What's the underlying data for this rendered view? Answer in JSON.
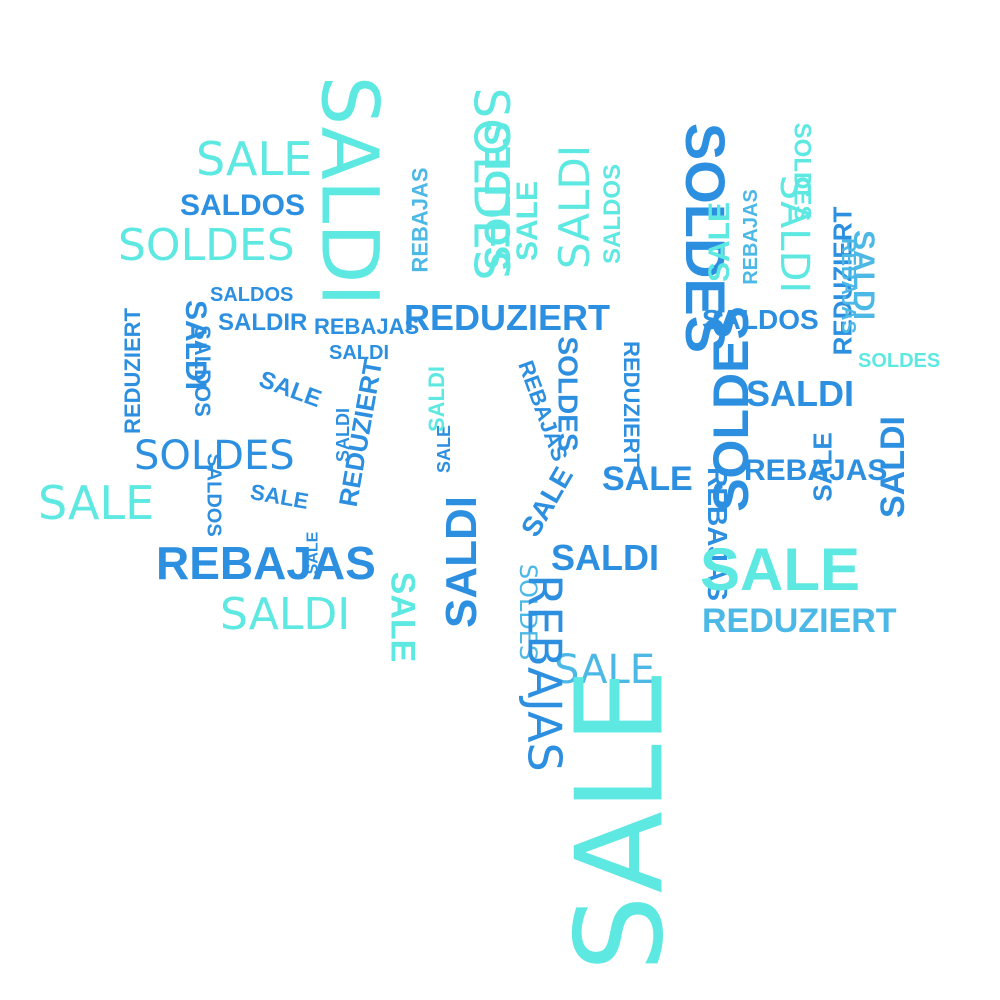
{
  "colors": {
    "background": "#ffffff",
    "light_cyan": "#5ee8e2",
    "mid_blue": "#4cb8e6",
    "blue": "#2d8fe0"
  },
  "words": [
    "SALE",
    "SALDOS",
    "SOLDES",
    "SALDI",
    "SOLDES",
    "REBAJAS",
    "SOLDES",
    "SALE",
    "SALDI",
    "SALDOS",
    "SOLDES",
    "SALE",
    "REBAJAS",
    "SALDI",
    "REDUZIERT",
    "SALDOS",
    "SALDIR",
    "REBAJAS",
    "REDUZIERT",
    "SALDOS",
    "REBAJAS",
    "SOLDES",
    "SALDI",
    "SALE",
    "REDUZIERT",
    "REDUZIERT",
    "REBAJAS",
    "SALDI",
    "SOLDES",
    "SALE",
    "REDUZIERT",
    "SALDI",
    "SOLDES",
    "SALDI",
    "SOLDES",
    "SALE",
    "REBAJAS",
    "SALE",
    "SALDI",
    "SALDOS",
    "SALE",
    "SALE",
    "REBAJAS",
    "SALE",
    "SALDI",
    "SALDI",
    "REBAJAS",
    "SALDI",
    "SALE",
    "REDUZIERT",
    "SALE",
    "SOLDES",
    "SALE",
    "SALE",
    "REBAJAS",
    "SALDI",
    "SALDI",
    "SALE",
    "SALDOS",
    "SOLDES"
  ]
}
